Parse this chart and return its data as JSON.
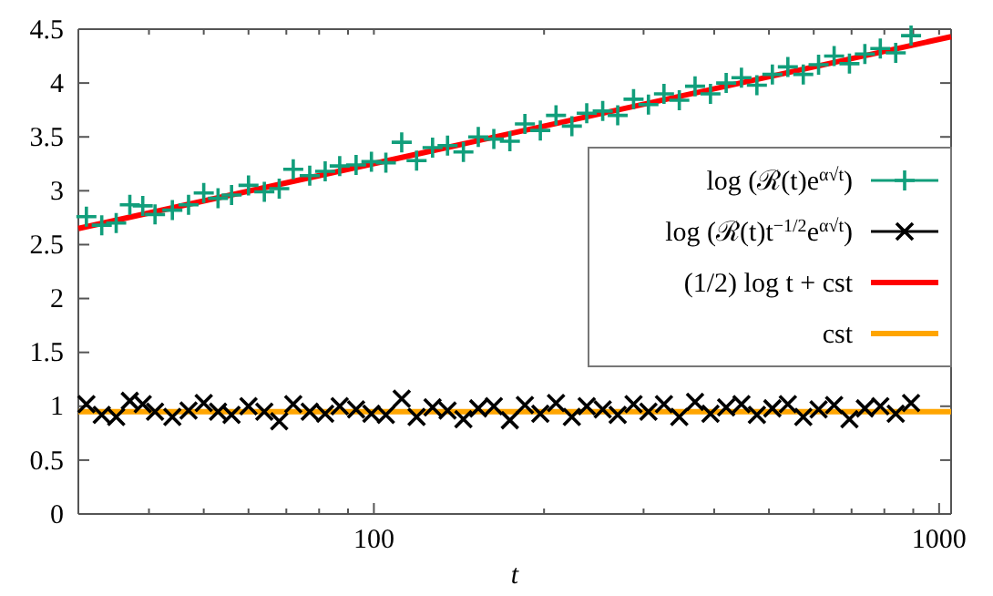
{
  "chart_data": {
    "type": "scatter",
    "xlabel": "t",
    "log": "x",
    "xlim": [
      30,
      1050
    ],
    "ylim": [
      0,
      4.5
    ],
    "xticks": [
      {
        "value": 30,
        "label": null
      },
      {
        "value": 40,
        "label": null
      },
      {
        "value": 50,
        "label": null
      },
      {
        "value": 60,
        "label": null
      },
      {
        "value": 70,
        "label": null
      },
      {
        "value": 80,
        "label": null
      },
      {
        "value": 90,
        "label": null
      },
      100,
      {
        "value": 200,
        "label": null
      },
      {
        "value": 300,
        "label": null
      },
      {
        "value": 400,
        "label": null
      },
      {
        "value": 500,
        "label": null
      },
      {
        "value": 600,
        "label": null
      },
      {
        "value": 700,
        "label": null
      },
      {
        "value": 800,
        "label": null
      },
      {
        "value": 900,
        "label": null
      },
      1000
    ],
    "yticks": [
      0,
      0.5,
      1,
      1.5,
      2,
      2.5,
      3,
      3.5,
      4,
      4.5
    ],
    "grid": false,
    "legend": "right",
    "series": [
      {
        "name": "log (ℛ(t)e$^{α√t}$)",
        "marker": "plus",
        "color": "#119e7b",
        "x": [
          31,
          33,
          35,
          37,
          39,
          41,
          44,
          47,
          50,
          53,
          56,
          60,
          64,
          68,
          72,
          77,
          82,
          87,
          93,
          99,
          105,
          112,
          119,
          127,
          135,
          144,
          153,
          163,
          174,
          185,
          197,
          210,
          224,
          238,
          254,
          270,
          288,
          306,
          326,
          347,
          370,
          394,
          420,
          447,
          476,
          507,
          540,
          575,
          612,
          652,
          694,
          739,
          787,
          838,
          892
        ],
        "values": [
          2.76,
          2.68,
          2.7,
          2.87,
          2.86,
          2.78,
          2.82,
          2.87,
          2.98,
          2.93,
          2.96,
          3.05,
          2.99,
          3.02,
          3.2,
          3.14,
          3.18,
          3.23,
          3.24,
          3.27,
          3.26,
          3.45,
          3.28,
          3.4,
          3.42,
          3.36,
          3.5,
          3.48,
          3.46,
          3.62,
          3.56,
          3.7,
          3.6,
          3.72,
          3.74,
          3.7,
          3.85,
          3.8,
          3.9,
          3.84,
          3.97,
          3.9,
          4.0,
          4.05,
          3.98,
          4.08,
          4.15,
          4.08,
          4.17,
          4.25,
          4.18,
          4.27,
          4.32,
          4.28,
          4.44
        ]
      },
      {
        "name": "log (ℛ(t)t$^{−1/2}$e$^{α√t}$)",
        "marker": "cross",
        "color": "#000000",
        "x": [
          31,
          33,
          35,
          37,
          39,
          41,
          44,
          47,
          50,
          53,
          56,
          60,
          64,
          68,
          72,
          77,
          82,
          87,
          93,
          99,
          105,
          112,
          119,
          127,
          135,
          144,
          153,
          163,
          174,
          185,
          197,
          210,
          224,
          238,
          254,
          270,
          288,
          306,
          326,
          347,
          370,
          394,
          420,
          447,
          476,
          507,
          540,
          575,
          612,
          652,
          694,
          739,
          787,
          838,
          892
        ],
        "values": [
          1.02,
          0.92,
          0.9,
          1.05,
          1.02,
          0.95,
          0.9,
          0.96,
          1.03,
          0.95,
          0.92,
          1.0,
          0.95,
          0.86,
          1.02,
          0.95,
          0.93,
          1.0,
          0.97,
          0.93,
          0.92,
          1.07,
          0.9,
          0.99,
          0.96,
          0.88,
          0.98,
          1.0,
          0.87,
          1.01,
          0.93,
          1.03,
          0.9,
          1.0,
          0.97,
          0.92,
          1.02,
          0.95,
          1.02,
          0.9,
          1.04,
          0.93,
          0.99,
          1.02,
          0.92,
          0.98,
          1.02,
          0.9,
          0.97,
          1.01,
          0.88,
          0.98,
          1.0,
          0.93,
          1.03
        ]
      },
      {
        "name": "(1/2) log t + cst",
        "type": "line",
        "color": "#ff0000",
        "x": [
          30,
          1050
        ],
        "values": [
          2.65,
          4.43
        ]
      },
      {
        "name": "cst",
        "type": "line",
        "color": "#ffa500",
        "x": [
          30,
          1050
        ],
        "values": [
          0.95,
          0.95
        ]
      }
    ]
  }
}
